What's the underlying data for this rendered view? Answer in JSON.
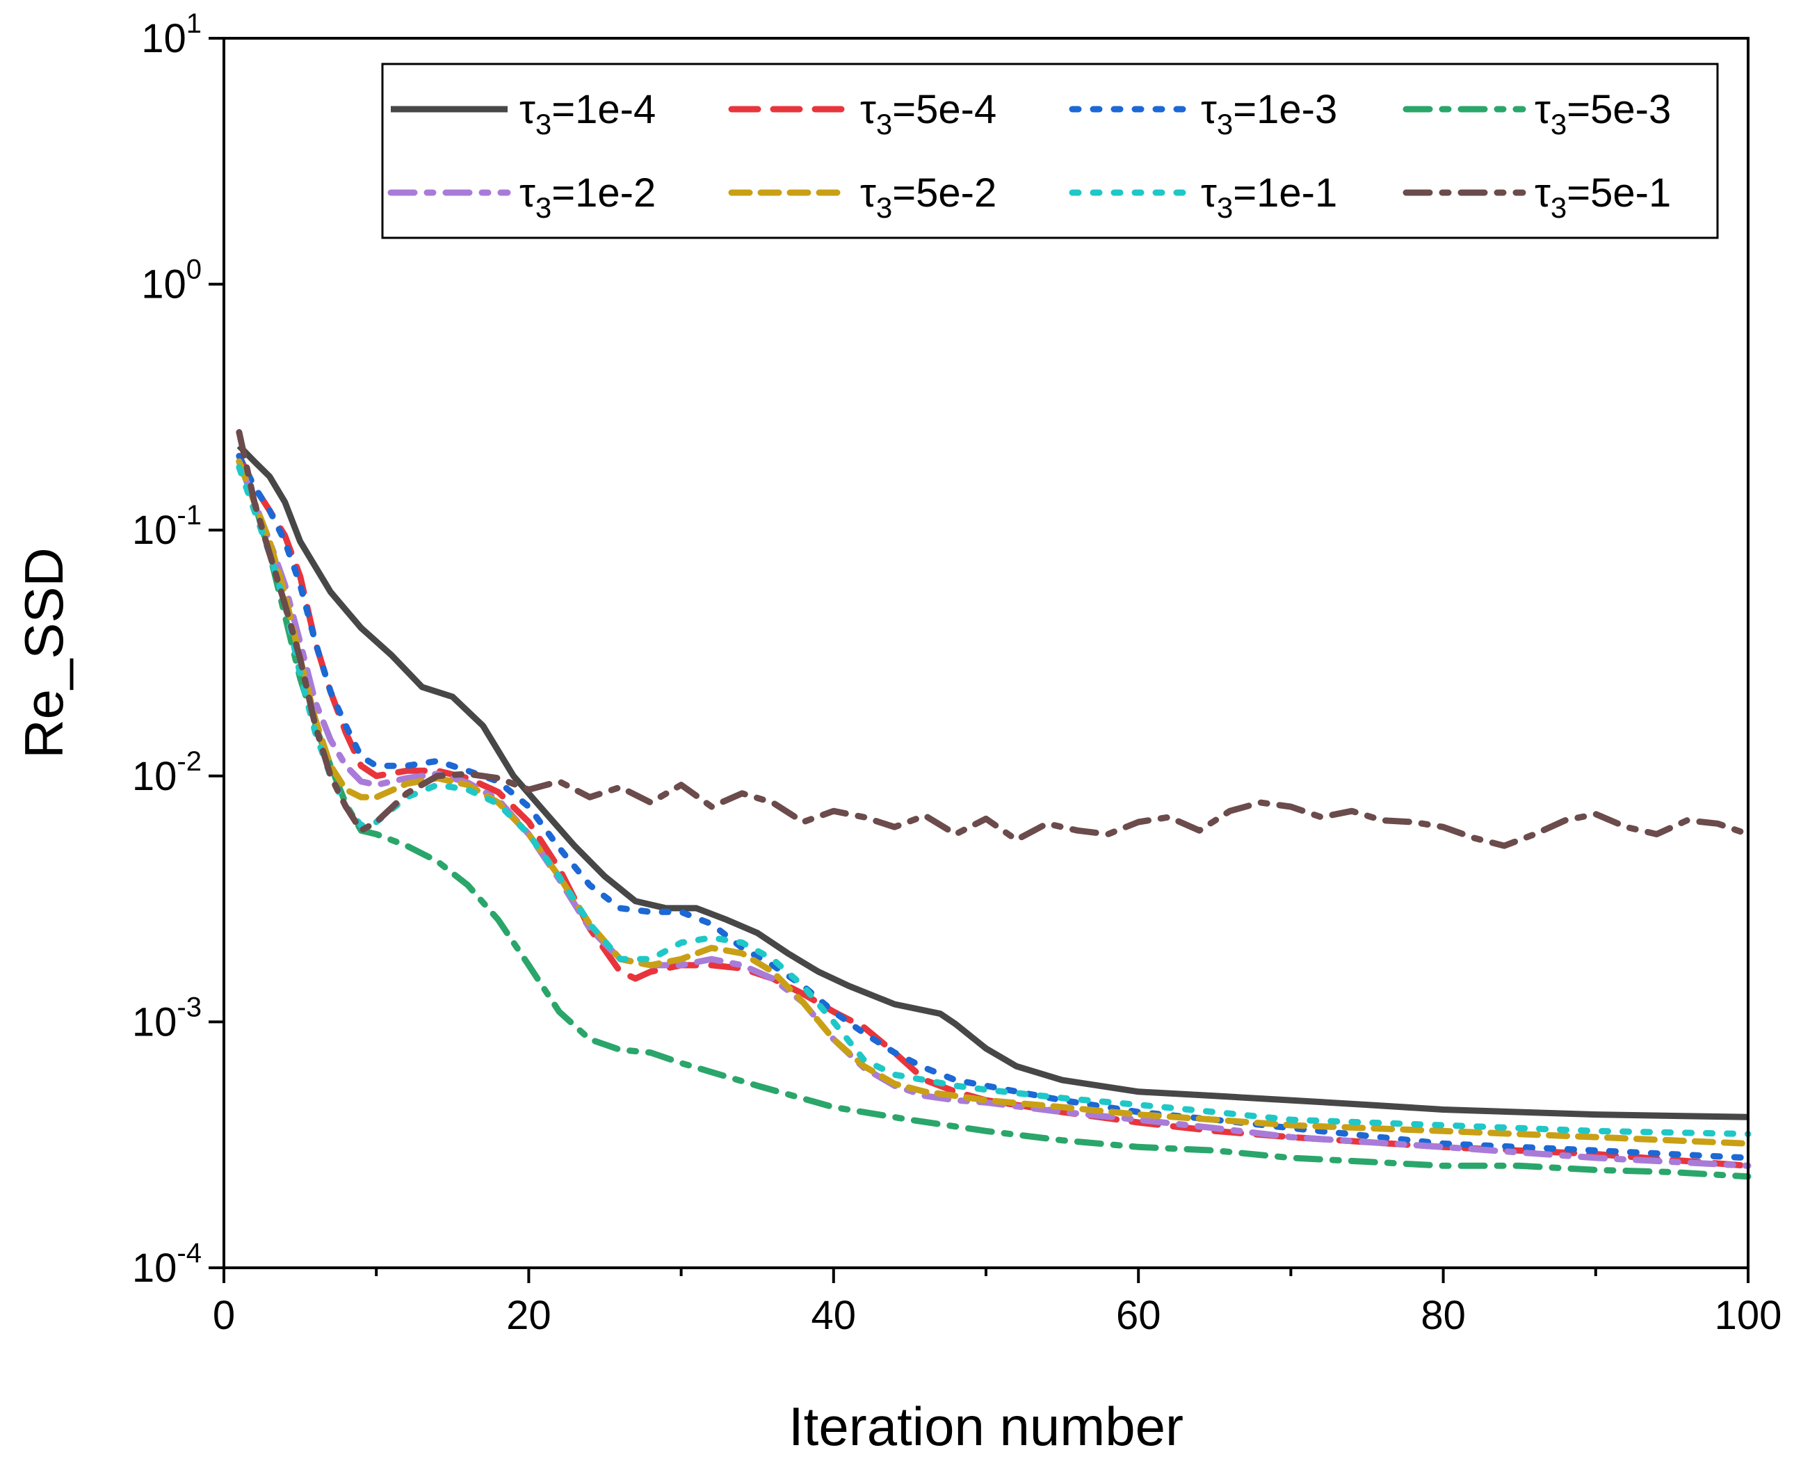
{
  "chart_data": {
    "type": "line",
    "xlabel": "Iteration number",
    "ylabel": "Re_SSD",
    "xlim": [
      0,
      100
    ],
    "ylim": [
      0.0001,
      10
    ],
    "yscale": "log",
    "grid": false,
    "legend_position": "top-right",
    "x_ticks": [
      {
        "value": 0,
        "label": "0"
      },
      {
        "value": 20,
        "label": "20"
      },
      {
        "value": 40,
        "label": "40"
      },
      {
        "value": 60,
        "label": "60"
      },
      {
        "value": 80,
        "label": "80"
      },
      {
        "value": 100,
        "label": "100"
      }
    ],
    "y_ticks": [
      {
        "value": 10,
        "base": "10",
        "exp": "1"
      },
      {
        "value": 1,
        "base": "10",
        "exp": "0"
      },
      {
        "value": 0.1,
        "base": "10",
        "exp": "-1"
      },
      {
        "value": 0.01,
        "base": "10",
        "exp": "-2"
      },
      {
        "value": 0.001,
        "base": "10",
        "exp": "-3"
      },
      {
        "value": 0.0001,
        "base": "10",
        "exp": "-4"
      }
    ],
    "series": [
      {
        "name": "τ3=1e-4",
        "legend_prefix": "τ",
        "legend_sub": "3",
        "legend_suffix": "=1e-4",
        "color": "#474747",
        "dash": "solid",
        "x": [
          1,
          2,
          3,
          4,
          5,
          7,
          9,
          11,
          13,
          15,
          17,
          19,
          21,
          23,
          25,
          27,
          29,
          31,
          33,
          35,
          37,
          39,
          41,
          44,
          47,
          48,
          50,
          52,
          55,
          60,
          65,
          70,
          75,
          80,
          90,
          100
        ],
        "y": [
          0.22,
          0.19,
          0.165,
          0.13,
          0.09,
          0.056,
          0.04,
          0.031,
          0.023,
          0.021,
          0.016,
          0.01,
          0.0072,
          0.0052,
          0.0039,
          0.0031,
          0.0029,
          0.0029,
          0.0026,
          0.0023,
          0.0019,
          0.0016,
          0.0014,
          0.00118,
          0.00108,
          0.00098,
          0.00078,
          0.00066,
          0.00058,
          0.00052,
          0.0005,
          0.00048,
          0.00046,
          0.00044,
          0.00042,
          0.00041
        ]
      },
      {
        "name": "τ3=5e-4",
        "legend_prefix": "τ",
        "legend_sub": "3",
        "legend_suffix": "=5e-4",
        "color": "#e8353c",
        "dash": "long",
        "x": [
          1,
          2,
          3,
          4,
          5,
          6,
          7,
          8,
          9,
          10,
          12,
          14,
          16,
          18,
          20,
          22,
          24,
          26,
          27,
          28,
          30,
          32,
          34,
          36,
          38,
          40,
          42,
          44,
          46,
          48,
          50,
          55,
          60,
          65,
          70,
          80,
          90,
          100
        ],
        "y": [
          0.2,
          0.15,
          0.12,
          0.095,
          0.065,
          0.035,
          0.022,
          0.015,
          0.011,
          0.01,
          0.0105,
          0.0105,
          0.0098,
          0.0086,
          0.0065,
          0.0042,
          0.0024,
          0.0016,
          0.0015,
          0.0016,
          0.0017,
          0.0017,
          0.00165,
          0.0015,
          0.0013,
          0.0011,
          0.00095,
          0.00075,
          0.00058,
          0.00052,
          0.00048,
          0.00043,
          0.00039,
          0.00036,
          0.00034,
          0.00031,
          0.00029,
          0.00026
        ]
      },
      {
        "name": "τ3=1e-3",
        "legend_prefix": "τ",
        "legend_sub": "3",
        "legend_suffix": "=1e-3",
        "color": "#1c68d4",
        "dash": "dot",
        "x": [
          1,
          2,
          3,
          4,
          5,
          6,
          7,
          8,
          9,
          10,
          12,
          14,
          16,
          18,
          20,
          22,
          24,
          26,
          28,
          30,
          32,
          34,
          36,
          38,
          40,
          42,
          44,
          46,
          48,
          50,
          55,
          60,
          65,
          70,
          80,
          90,
          100
        ],
        "y": [
          0.2,
          0.15,
          0.12,
          0.09,
          0.06,
          0.035,
          0.022,
          0.016,
          0.012,
          0.011,
          0.011,
          0.0115,
          0.0105,
          0.0095,
          0.0075,
          0.0051,
          0.0036,
          0.0029,
          0.0028,
          0.0028,
          0.0025,
          0.002,
          0.0017,
          0.0014,
          0.0011,
          0.0009,
          0.00075,
          0.00065,
          0.00058,
          0.00055,
          0.00048,
          0.00043,
          0.0004,
          0.00037,
          0.00032,
          0.0003,
          0.00028
        ]
      },
      {
        "name": "τ3=5e-3",
        "legend_prefix": "τ",
        "legend_sub": "3",
        "legend_suffix": "=5e-3",
        "color": "#2aa66b",
        "dash": "dashdot",
        "x": [
          1,
          2,
          3,
          4,
          5,
          6,
          7,
          8,
          9,
          10,
          12,
          14,
          16,
          18,
          20,
          22,
          24,
          26,
          28,
          30,
          35,
          40,
          45,
          50,
          55,
          60,
          65,
          70,
          75,
          80,
          85,
          90,
          95,
          100
        ],
        "y": [
          0.19,
          0.13,
          0.08,
          0.045,
          0.025,
          0.016,
          0.011,
          0.0077,
          0.006,
          0.0058,
          0.0052,
          0.0045,
          0.0036,
          0.0026,
          0.0017,
          0.0011,
          0.00085,
          0.00077,
          0.00075,
          0.00068,
          0.00055,
          0.00045,
          0.0004,
          0.00036,
          0.00033,
          0.00031,
          0.0003,
          0.00028,
          0.00027,
          0.00026,
          0.00026,
          0.00025,
          0.000245,
          0.000235
        ]
      },
      {
        "name": "τ3=1e-2",
        "legend_prefix": "τ",
        "legend_sub": "3",
        "legend_suffix": "=1e-2",
        "color": "#a97bd9",
        "dash": "dashdot",
        "x": [
          1,
          2,
          3,
          4,
          5,
          6,
          7,
          8,
          9,
          10,
          12,
          14,
          16,
          18,
          20,
          22,
          24,
          26,
          28,
          30,
          32,
          34,
          36,
          38,
          40,
          42,
          44,
          46,
          48,
          50,
          55,
          60,
          65,
          70,
          80,
          90,
          100
        ],
        "y": [
          0.19,
          0.13,
          0.09,
          0.06,
          0.035,
          0.02,
          0.014,
          0.011,
          0.0095,
          0.0092,
          0.0098,
          0.0102,
          0.0094,
          0.008,
          0.0058,
          0.0038,
          0.0024,
          0.0018,
          0.0017,
          0.0017,
          0.0018,
          0.0017,
          0.0015,
          0.0012,
          0.00085,
          0.00065,
          0.00055,
          0.0005,
          0.00048,
          0.00047,
          0.00043,
          0.0004,
          0.00037,
          0.00034,
          0.00031,
          0.00028,
          0.00026
        ]
      },
      {
        "name": "τ3=5e-2",
        "legend_prefix": "τ",
        "legend_sub": "3",
        "legend_suffix": "=5e-2",
        "color": "#c9a015",
        "dash": "medium",
        "x": [
          1,
          2,
          3,
          4,
          5,
          6,
          7,
          8,
          9,
          10,
          12,
          14,
          16,
          18,
          20,
          22,
          24,
          26,
          28,
          30,
          32,
          34,
          36,
          38,
          40,
          42,
          44,
          46,
          48,
          50,
          55,
          60,
          65,
          70,
          80,
          90,
          100
        ],
        "y": [
          0.19,
          0.13,
          0.09,
          0.055,
          0.03,
          0.017,
          0.011,
          0.0088,
          0.0082,
          0.0082,
          0.0093,
          0.0098,
          0.0092,
          0.0078,
          0.0058,
          0.0039,
          0.0025,
          0.0018,
          0.0017,
          0.0018,
          0.002,
          0.0019,
          0.0016,
          0.0012,
          0.00085,
          0.00066,
          0.00056,
          0.00052,
          0.0005,
          0.00048,
          0.00045,
          0.00042,
          0.0004,
          0.00038,
          0.00036,
          0.00034,
          0.00032
        ]
      },
      {
        "name": "τ3=1e-1",
        "legend_prefix": "τ",
        "legend_sub": "3",
        "legend_suffix": "=1e-1",
        "color": "#1fc7c7",
        "dash": "dot",
        "x": [
          1,
          2,
          3,
          4,
          5,
          6,
          7,
          8,
          9,
          10,
          12,
          14,
          16,
          18,
          20,
          22,
          24,
          26,
          28,
          30,
          32,
          34,
          36,
          38,
          40,
          42,
          44,
          46,
          48,
          50,
          55,
          60,
          65,
          70,
          80,
          90,
          100
        ],
        "y": [
          0.18,
          0.12,
          0.08,
          0.05,
          0.026,
          0.015,
          0.01,
          0.0075,
          0.0063,
          0.0065,
          0.0082,
          0.0092,
          0.0088,
          0.0077,
          0.0058,
          0.0039,
          0.0025,
          0.0018,
          0.0018,
          0.0021,
          0.0022,
          0.0021,
          0.0018,
          0.0014,
          0.001,
          0.0007,
          0.00061,
          0.00058,
          0.00055,
          0.00053,
          0.00049,
          0.00046,
          0.00043,
          0.0004,
          0.00038,
          0.00036,
          0.00035
        ]
      },
      {
        "name": "τ3=5e-1",
        "legend_prefix": "τ",
        "legend_sub": "3",
        "legend_suffix": "=5e-1",
        "color": "#6b4b4b",
        "dash": "dashdot",
        "x": [
          1,
          2,
          3,
          4,
          5,
          6,
          7,
          8,
          9,
          10,
          12,
          14,
          16,
          18,
          20,
          22,
          24,
          26,
          28,
          30,
          32,
          34,
          36,
          38,
          40,
          42,
          44,
          46,
          48,
          50,
          52,
          54,
          56,
          58,
          60,
          62,
          64,
          66,
          68,
          70,
          72,
          74,
          76,
          78,
          80,
          82,
          84,
          86,
          88,
          90,
          92,
          94,
          96,
          98,
          100
        ],
        "y": [
          0.25,
          0.13,
          0.08,
          0.05,
          0.03,
          0.016,
          0.01,
          0.0075,
          0.006,
          0.0065,
          0.0085,
          0.01,
          0.0102,
          0.0098,
          0.0088,
          0.0095,
          0.0082,
          0.009,
          0.0078,
          0.0092,
          0.0075,
          0.0085,
          0.0078,
          0.0065,
          0.0072,
          0.0068,
          0.0062,
          0.0069,
          0.0058,
          0.0067,
          0.0055,
          0.0064,
          0.006,
          0.0058,
          0.0065,
          0.0068,
          0.006,
          0.0072,
          0.0078,
          0.0075,
          0.0068,
          0.0072,
          0.0066,
          0.0065,
          0.0062,
          0.0056,
          0.0052,
          0.0058,
          0.0066,
          0.007,
          0.0062,
          0.0058,
          0.0066,
          0.0064,
          0.0058
        ]
      }
    ]
  }
}
